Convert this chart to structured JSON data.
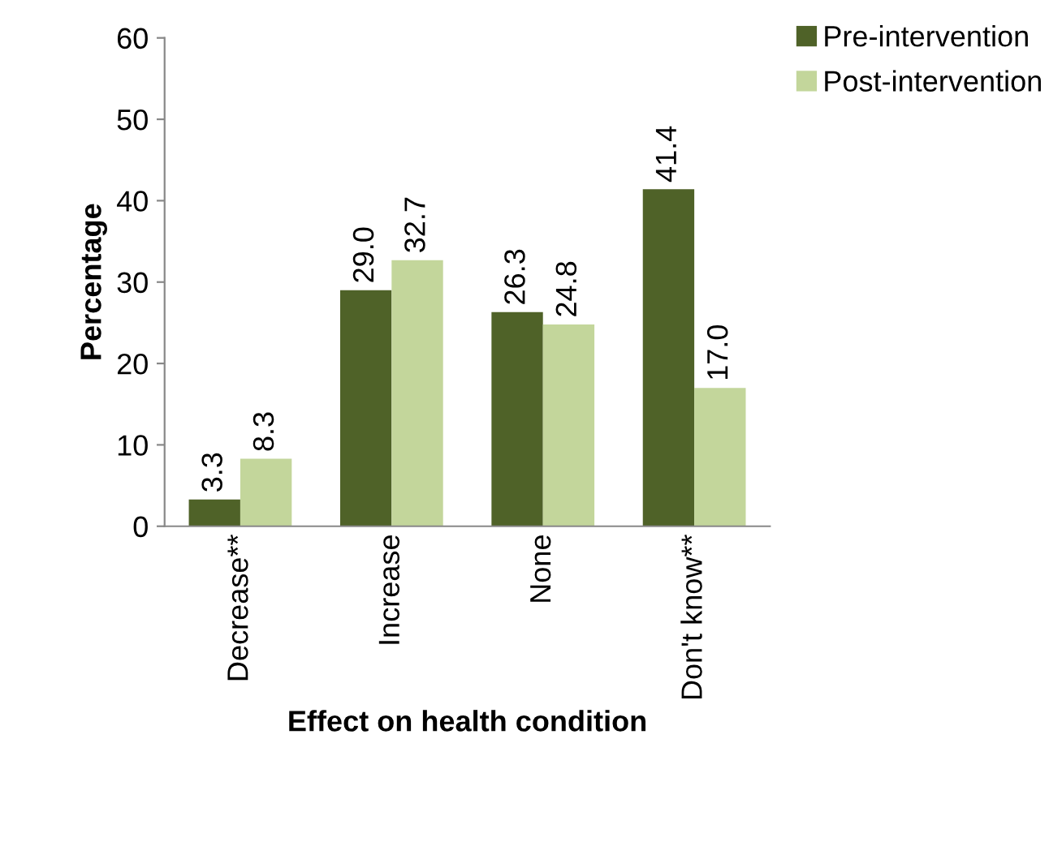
{
  "chart_data": {
    "type": "bar",
    "xlabel": "Effect on health condition",
    "ylabel": "Percentage",
    "categories": [
      "Decrease**",
      "Increase",
      "None",
      "Don't know**"
    ],
    "series": [
      {
        "name": "Pre-intervention",
        "color": "#4f6228",
        "values": [
          3.3,
          29.0,
          26.3,
          41.4
        ],
        "value_labels": [
          "3.3",
          "29.0",
          "26.3",
          "41.4"
        ]
      },
      {
        "name": "Post-intervention",
        "color": "#c3d69b",
        "values": [
          8.3,
          32.7,
          24.8,
          17.0
        ],
        "value_labels": [
          "8.3",
          "32.7",
          "24.8",
          "17.0"
        ]
      }
    ],
    "ylim": [
      0,
      60
    ],
    "yticks": [
      0,
      10,
      20,
      30,
      40,
      50,
      60
    ],
    "grid": false,
    "legend": "top right"
  }
}
